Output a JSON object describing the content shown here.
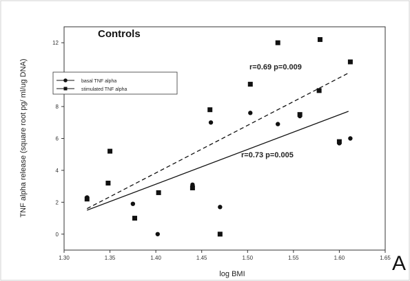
{
  "chart_data": {
    "type": "scatter",
    "title": "Controls",
    "xlabel": "log BMI",
    "ylabel": "TNF alpha release (square root pg/ ml/ug DNA)",
    "xlim": [
      1.3,
      1.65
    ],
    "ylim": [
      -1,
      13
    ],
    "x_ticks": [
      "1.30",
      "1.35",
      "1.40",
      "1.45",
      "1.50",
      "1.55",
      "1.60",
      "1.65"
    ],
    "y_ticks": [
      "0",
      "2",
      "4",
      "6",
      "8",
      "10",
      "12"
    ],
    "panel_label": "A",
    "legend_position": "top-left",
    "series": [
      {
        "name": "basal TNF alpha",
        "marker": "circle",
        "line_style": "solid",
        "x": [
          1.325,
          1.375,
          1.402,
          1.44,
          1.46,
          1.47,
          1.503,
          1.533,
          1.557,
          1.6,
          1.612
        ],
        "y": [
          2.3,
          1.9,
          0.0,
          3.1,
          7.0,
          1.7,
          7.6,
          6.9,
          7.4,
          5.7,
          6.0
        ]
      },
      {
        "name": "stimulated TNF alpha",
        "marker": "square",
        "line_style": "dashed",
        "x": [
          1.325,
          1.348,
          1.35,
          1.377,
          1.403,
          1.44,
          1.459,
          1.47,
          1.503,
          1.533,
          1.557,
          1.578,
          1.579,
          1.6,
          1.612
        ],
        "y": [
          2.2,
          3.2,
          5.2,
          1.0,
          2.6,
          2.9,
          7.8,
          0.0,
          9.4,
          12.0,
          7.5,
          9.0,
          12.2,
          5.8,
          10.8
        ]
      }
    ],
    "fit_lines": [
      {
        "series": "basal TNF alpha",
        "style": "solid",
        "x": [
          1.325,
          1.61
        ],
        "y": [
          1.5,
          7.7
        ]
      },
      {
        "series": "stimulated TNF alpha",
        "style": "dashed",
        "x": [
          1.325,
          1.61
        ],
        "y": [
          1.6,
          10.1
        ]
      }
    ],
    "annotations": [
      {
        "text": "r=0.69 p=0.009",
        "x": 1.505,
        "y": 10.45
      },
      {
        "text": "r=0.73 p=0.005",
        "x": 1.51,
        "y": 5.25
      }
    ]
  }
}
